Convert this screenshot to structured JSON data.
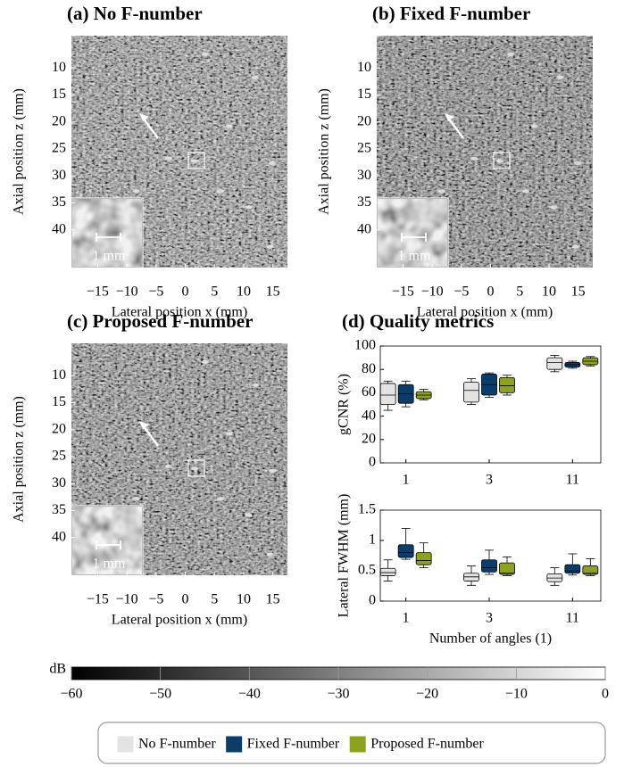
{
  "chart_data": [
    {
      "type": "image",
      "title": "(a) No F-number",
      "xlabel": "Lateral position x (mm)",
      "ylabel": "Axial position z (mm)",
      "inset_label": "1 mm",
      "xlim": [
        -19.5,
        17.5
      ],
      "ylim": [
        47,
        4
      ],
      "xticks": [
        {
          "value": -15,
          "label": "−15"
        },
        {
          "value": -10,
          "label": "−10"
        },
        {
          "value": -5,
          "label": "−5"
        },
        0,
        5,
        10,
        15
      ],
      "yticks": [
        10,
        15,
        20,
        25,
        30,
        35,
        40
      ]
    },
    {
      "type": "image",
      "title": "(b) Fixed F-number",
      "xlabel": "Lateral position x (mm)",
      "ylabel": "Axial position z (mm)",
      "inset_label": "1 mm",
      "xlim": [
        -19.5,
        17.5
      ],
      "ylim": [
        47,
        4
      ],
      "xticks": [
        {
          "value": -15,
          "label": "−15"
        },
        {
          "value": -10,
          "label": "−10"
        },
        {
          "value": -5,
          "label": "−5"
        },
        0,
        5,
        10,
        15
      ],
      "yticks": [
        10,
        15,
        20,
        25,
        30,
        35,
        40
      ]
    },
    {
      "type": "image",
      "title": "(c) Proposed F-number",
      "xlabel": "Lateral position x (mm)",
      "ylabel": "Axial position z (mm)",
      "inset_label": "1 mm",
      "xlim": [
        -19.5,
        17.5
      ],
      "ylim": [
        47,
        4
      ],
      "xticks": [
        {
          "value": -15,
          "label": "−15"
        },
        {
          "value": -10,
          "label": "−10"
        },
        {
          "value": -5,
          "label": "−5"
        },
        0,
        5,
        10,
        15
      ],
      "yticks": [
        10,
        15,
        20,
        25,
        30,
        35,
        40
      ]
    },
    {
      "type": "box",
      "title": "(d) Quality metrics",
      "ylabel": "gCNR (%)",
      "categories": [
        "1",
        "3",
        "11"
      ],
      "ylim": [
        0,
        100
      ],
      "yticks": [
        0,
        20,
        40,
        60,
        80,
        100
      ],
      "legend": "bottom",
      "series": [
        {
          "name": "No F-number",
          "color": "#e3e3e3",
          "values": [
            [
              45,
              50,
              58,
              68,
              70
            ],
            [
              50,
              52,
              62,
              69,
              72
            ],
            [
              78,
              80,
              86,
              90,
              92
            ]
          ]
        },
        {
          "name": "Fixed F-number",
          "color": "#0b3d6b",
          "values": [
            [
              48,
              51,
              59,
              67,
              70
            ],
            [
              56,
              58,
              67,
              76,
              77
            ],
            [
              81,
              82,
              84,
              86,
              87
            ]
          ]
        },
        {
          "name": "Proposed F-number",
          "color": "#8ca21f",
          "values": [
            [
              54,
              55,
              58,
              61,
              63
            ],
            [
              58,
              60,
              66,
              73,
              75
            ],
            [
              83,
              84,
              87,
              90,
              91
            ]
          ]
        }
      ]
    },
    {
      "type": "box",
      "ylabel": "Lateral FWHM (mm)",
      "xlabel": "Number of angles (1)",
      "categories": [
        "1",
        "3",
        "11"
      ],
      "ylim": [
        0,
        1.5
      ],
      "yticks": [
        0,
        0.5,
        1,
        1.5
      ],
      "series": [
        {
          "name": "No F-number",
          "color": "#e3e3e3",
          "values": [
            [
              0.33,
              0.42,
              0.47,
              0.54,
              0.68
            ],
            [
              0.26,
              0.33,
              0.4,
              0.46,
              0.58
            ],
            [
              0.26,
              0.32,
              0.38,
              0.45,
              0.55
            ]
          ]
        },
        {
          "name": "Fixed F-number",
          "color": "#0b3d6b",
          "values": [
            [
              0.69,
              0.72,
              0.8,
              0.93,
              1.2
            ],
            [
              0.44,
              0.48,
              0.55,
              0.68,
              0.84
            ],
            [
              0.43,
              0.46,
              0.5,
              0.6,
              0.78
            ]
          ]
        },
        {
          "name": "Proposed F-number",
          "color": "#8ca21f",
          "values": [
            [
              0.55,
              0.6,
              0.67,
              0.8,
              0.96
            ],
            [
              0.42,
              0.44,
              0.46,
              0.63,
              0.73
            ],
            [
              0.42,
              0.44,
              0.46,
              0.58,
              0.7
            ]
          ]
        }
      ]
    },
    {
      "type": "colorbar",
      "label": "dB",
      "xlim": [
        -60,
        0
      ],
      "xticks": [
        {
          "value": -60,
          "label": "−60"
        },
        {
          "value": -50,
          "label": "−50"
        },
        {
          "value": -40,
          "label": "−40"
        },
        {
          "value": -30,
          "label": "−30"
        },
        {
          "value": -20,
          "label": "−20"
        },
        {
          "value": -10,
          "label": "−10"
        },
        0
      ]
    }
  ]
}
